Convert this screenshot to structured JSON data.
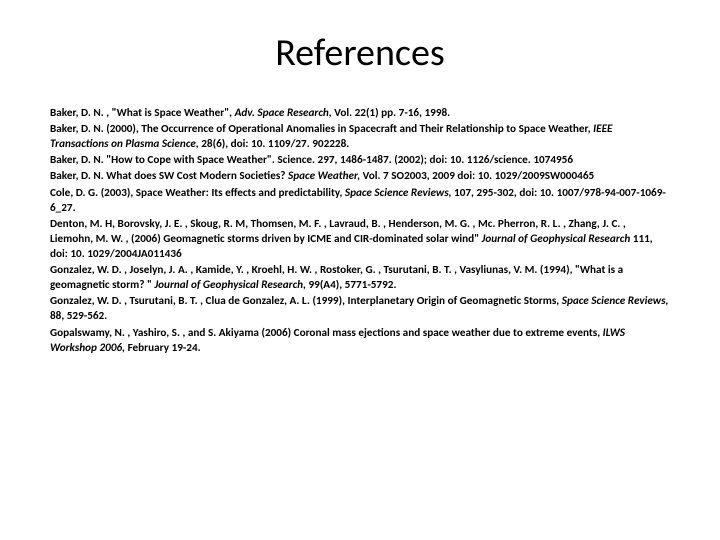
{
  "title": "References",
  "title_fontsize": 38,
  "body_fontsize": 11.2,
  "line_height": 1.35,
  "background_color": "#ffffff",
  "text_color": "#000000",
  "font_family": "Calibri",
  "r1a": "Baker, D. N. , \"What is Space Weather\", ",
  "r1b": "Adv. Space Research, ",
  "r1c": "Vol. 22(1) pp. 7-16, 1998.",
  "r2a": "Baker, D. N. (2000), The Occurrence of Operational Anomalies in Spacecraft and Their Relationship to Space Weather, ",
  "r2b": "IEEE Transactions on Plasma Science, ",
  "r2c": "28(6), doi: 10. 1109/27. 902228.",
  "r3a": "Baker, D. N. \"How to Cope with Space Weather\". Science. 297, 1486-1487. (2002); doi: 10. 1126/science. 1074956",
  "r4a": "Baker, D. N. What does SW Cost Modern Societies? ",
  "r4b": "Space Weather, ",
  "r4c": "Vol. 7 SO2003, 2009 doi: 10. 1029/2009SW000465",
  "r5a": " Cole, D. G. (2003), Space Weather: Its effects and predictability, ",
  "r5b": "Space Science Reviews, ",
  "r5c": "107, 295-302, doi: 10. 1007/978-94-007-1069-6_27.",
  "r6a": "Denton, M. H, Borovsky, J. E. , Skoug, R. M, Thomsen, M. F. , Lavraud, B. , Henderson, M. G. , Mc. Pherron, R. L. , Zhang, J. C. , Liemohn, M. W. , (2006) Geomagnetic storms driven by ICME and CIR-dominated solar wind\" ",
  "r6b": "Journal of Geophysical Research ",
  "r6c": "111, doi: 10. 1029/2004JA011436",
  "r7a": "Gonzalez, W. D. , Joselyn, J. A. , Kamide, Y. , Kroehl, H. W. , Rostoker, G. , Tsurutani, B. T. , Vasyliunas, V. M. (1994), \"What is a geomagnetic storm? \" ",
  "r7b": "Journal of Geophysical Research, ",
  "r7c": "99(A4), 5771-5792.",
  "r8a": "Gonzalez, W. D. , Tsurutani, B. T. , Clua de Gonzalez, A. L. (1999), Interplanetary Origin of Geomagnetic Storms, ",
  "r8b": "Space Science Reviews, ",
  "r8c": "88, 529-562.",
  "r9a": "Gopalswamy, N. , Yashiro, S. , and S. Akiyama (2006) Coronal mass ejections and space weather due to extreme events, ",
  "r9b": "ILWS Workshop 2006, ",
  "r9c": "February 19-24."
}
